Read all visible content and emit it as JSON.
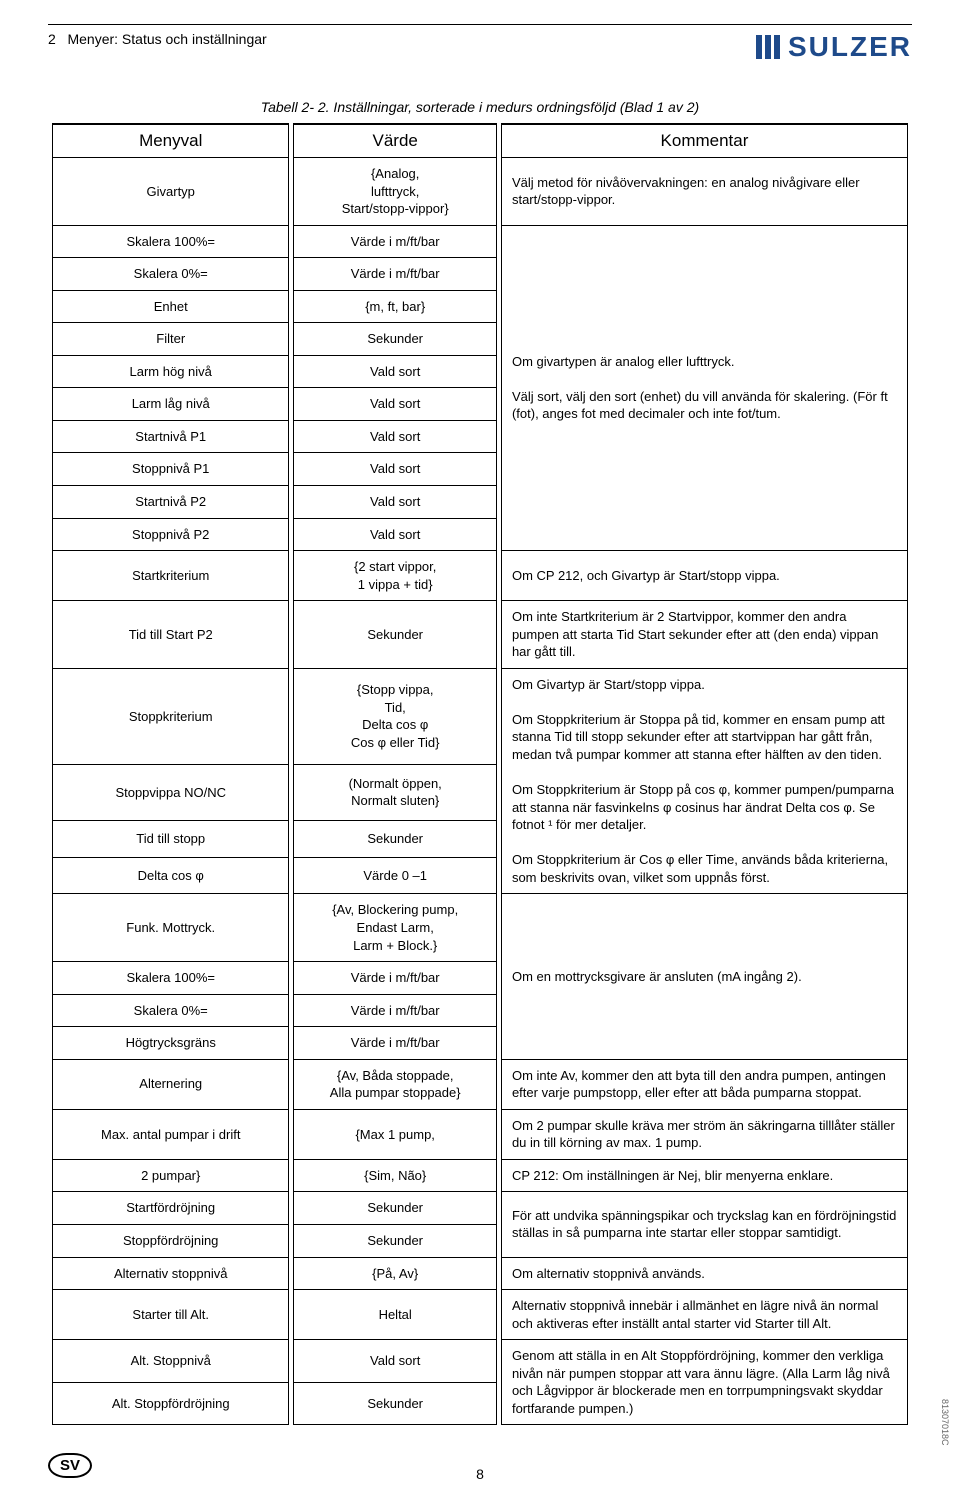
{
  "header": {
    "chapter_num": "2",
    "chapter_title": "Menyer: Status och inställningar",
    "brand": "SULZER",
    "brand_color": "#1e4a8a"
  },
  "caption": "Tabell 2- 2.  Inställningar, sorterade i medurs ordningsföljd  (Blad 1 av 2)",
  "table": {
    "headers": {
      "menu": "Menyval",
      "value": "Värde",
      "comment": "Kommentar"
    }
  },
  "rows": {
    "r1": {
      "menu": "Givartyp",
      "value": "{Analog,\nlufttryck,\nStart/stopp-vippor}",
      "comment": "Välj metod för nivåövervakningen: en analog nivågivare eller start/stopp-vippor."
    },
    "r2": {
      "menu": "Skalera 100%=",
      "value": "Värde i m/ft/bar"
    },
    "r3": {
      "menu": "Skalera 0%=",
      "value": "Värde i m/ft/bar"
    },
    "r4": {
      "menu": "Enhet",
      "value": "{m, ft, bar}"
    },
    "r5": {
      "menu": "Filter",
      "value": "Sekunder"
    },
    "r6": {
      "menu": "Larm hög nivå",
      "value": "Vald sort"
    },
    "r7": {
      "menu": "Larm låg nivå",
      "value": "Vald sort"
    },
    "r8": {
      "menu": "Startnivå P1",
      "value": "Vald sort"
    },
    "r9": {
      "menu": "Stoppnivå P1",
      "value": "Vald sort"
    },
    "r10": {
      "menu": "Startnivå P2",
      "value": "Vald sort"
    },
    "r11": {
      "menu": "Stoppnivå P2",
      "value": "Vald sort"
    },
    "comment_group1": "Om givartypen är analog eller lufttryck.\n\nVälj sort, välj den sort (enhet) du vill använda för skalering. (För ft (fot), anges fot med decimaler och inte fot/tum.",
    "r12": {
      "menu": "Startkriterium",
      "value": "{2 start vippor,\n1 vippa + tid}",
      "comment": "Om CP  212, och Givartyp är Start/stopp vippa."
    },
    "r13": {
      "menu": "Tid till Start P2",
      "value": "Sekunder",
      "comment": "Om inte Startkriterium är 2 Startvippor, kommer den andra pumpen att starta Tid Start sekunder efter att (den enda) vippan har gått till."
    },
    "r14": {
      "menu": "Stoppkriterium",
      "value": "{Stopp vippa,\nTid,\nDelta cos φ\nCos φ eller Tid}"
    },
    "r15": {
      "menu": "Stoppvippa NO/NC",
      "value": "(Normalt öppen,\nNormalt sluten}"
    },
    "r16": {
      "menu": "Tid till stopp",
      "value": "Sekunder"
    },
    "r17": {
      "menu": "Delta cos φ",
      "value": "Värde 0 –1"
    },
    "comment_group2": "Om Givartyp är Start/stopp vippa.\n\nOm Stoppkriterium är Stoppa på tid, kommer en ensam pump att stanna Tid till stopp sekunder efter att startvippan har gått från, medan två pumpar kommer att stanna efter hälften av den tiden.\n\nOm Stoppkriterium är Stopp på cos φ, kommer pumpen/pumparna att stanna när fasvinkelns φ cosinus  har ändrat Delta cos φ.  Se fotnot ¹ för mer detaljer.\n\nOm Stoppkriterium är Cos φ eller Time, används båda kriterierna, som beskrivits ovan, vilket som uppnås först.",
    "r18": {
      "menu": "Funk. Mottryck.",
      "value": "{Av, Blockering pump,\nEndast Larm,\nLarm + Block.}"
    },
    "r19": {
      "menu": "Skalera 100%=",
      "value": "Värde i m/ft/bar"
    },
    "r20": {
      "menu": "Skalera 0%=",
      "value": "Värde i m/ft/bar"
    },
    "r21": {
      "menu": "Högtrycksgräns",
      "value": "Värde i m/ft/bar"
    },
    "comment_group3": "Om en mottrycksgivare är ansluten (mA ingång 2).",
    "r22": {
      "menu": "Alternering",
      "value": "{Av, Båda stoppade,\nAlla pumpar stoppade}",
      "comment": "Om inte Av, kommer den att byta till den andra pumpen, antingen efter varje pumpstopp, eller efter att båda pumparna stoppat."
    },
    "r23": {
      "menu": "Max. antal pumpar i drift",
      "value": "{Max 1 pump,",
      "comment": "Om 2 pumpar skulle kräva mer ström än säkringarna tilllåter ställer du in till körning av max. 1 pump."
    },
    "r24": {
      "menu": "2 pumpar}",
      "value": "{Sim, Não}",
      "comment": "CP  212: Om inställningen är Nej, blir menyerna enklare."
    },
    "r25": {
      "menu": "Startfördröjning",
      "value": "Sekunder"
    },
    "r26": {
      "menu": "Stoppfördröjning",
      "value": "Sekunder"
    },
    "comment_group4": "För att undvika spänningspikar och tryckslag kan en fördröjningstid ställas in så pumparna inte startar eller stoppar samtidigt.",
    "r27": {
      "menu": "Alternativ stoppnivå",
      "value": "{På, Av}",
      "comment": "Om alternativ stoppnivå används."
    },
    "r28": {
      "menu": "Starter till Alt.",
      "value": "Heltal",
      "comment": "Alternativ stoppnivå innebär i allmänhet en lägre nivå än normal och aktiveras efter inställt antal starter vid Starter till Alt."
    },
    "r29": {
      "menu": "Alt. Stoppnivå",
      "value": "Vald sort"
    },
    "r30": {
      "menu": "Alt. Stoppfördröjning",
      "value": "Sekunder"
    },
    "comment_group5": "Genom att ställa in en Alt Stoppfördröjning, kommer den verkliga nivån när pumpen stoppar att vara ännu lägre. (Alla Larm låg nivå och Lågvippor är blockerade men en torrpumpningsvakt skyddar fortfarande pumpen.)"
  },
  "footer": {
    "lang_badge": "SV",
    "page_num": "8",
    "side_code": "81307018C"
  }
}
